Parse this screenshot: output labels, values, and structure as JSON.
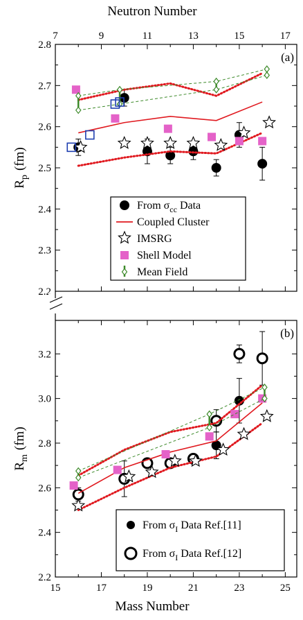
{
  "chart_data": [
    {
      "type": "scatter",
      "panel_label": "(a)",
      "xlabel_top": "Neutron Number",
      "ylabel_main": "R",
      "ylabel_sub": "p",
      "ylabel_unit": "(fm)",
      "xlim": [
        15,
        25.5
      ],
      "ylim": [
        2.2,
        2.8
      ],
      "yticks": [
        2.2,
        2.3,
        2.4,
        2.5,
        2.6,
        2.7,
        2.8
      ],
      "ytick_labels": [
        "2.2",
        "2.3",
        "2.4",
        "2.5",
        "2.6",
        "2.7",
        "2.8"
      ],
      "top_ticks": [
        7,
        9,
        11,
        13,
        15,
        17
      ],
      "top_tick_labels": [
        "7",
        "9",
        "11",
        "13",
        "15",
        "17"
      ],
      "series": [
        {
          "name": "From σcc Data",
          "legend_main": "From σ",
          "legend_sub": "cc",
          "legend_tail": " Data",
          "marker": "filled-circle",
          "x": [
            16,
            18,
            19,
            20,
            21,
            22,
            23,
            24
          ],
          "y": [
            2.55,
            2.67,
            2.54,
            2.53,
            2.54,
            2.5,
            2.58,
            2.51
          ],
          "err": [
            0.02,
            0.02,
            0.03,
            0.02,
            0.02,
            0.02,
            0.03,
            0.04
          ]
        },
        {
          "name": "Coupled Cluster",
          "marker": "line",
          "x": [
            16,
            18,
            20,
            22,
            24
          ],
          "y": [
            2.585,
            2.61,
            2.625,
            2.615,
            2.66
          ],
          "band_upper": [
            2.665,
            2.69,
            2.705,
            2.675,
            2.73
          ],
          "band_lower": [
            2.505,
            2.525,
            2.54,
            2.535,
            2.585
          ]
        },
        {
          "name": "IMSRG",
          "marker": "open-star",
          "x": [
            16.1,
            18,
            19,
            20,
            21,
            22.2,
            23.2,
            24.3
          ],
          "y": [
            2.55,
            2.56,
            2.56,
            2.56,
            2.56,
            2.555,
            2.585,
            2.61
          ]
        },
        {
          "name": "Shell Model",
          "marker": "filled-square",
          "x": [
            15.9,
            17.6,
            19.9,
            21.8,
            23,
            24
          ],
          "y": [
            2.69,
            2.62,
            2.595,
            2.575,
            2.565,
            2.565
          ]
        },
        {
          "name": "Mean Field",
          "marker": "open-diamond",
          "x": [
            16,
            17.8,
            22,
            24.2
          ],
          "y_upper": [
            2.675,
            2.69,
            2.71,
            2.74
          ],
          "y_lower": [
            2.64,
            2.655,
            2.69,
            2.725
          ]
        },
        {
          "name": "Open squares",
          "marker": "open-square",
          "in_legend": false,
          "x": [
            15.7,
            16.5,
            17.6,
            17.8
          ],
          "y": [
            2.55,
            2.58,
            2.655,
            2.66
          ]
        }
      ]
    },
    {
      "type": "scatter",
      "panel_label": "(b)",
      "xlabel": "Mass Number",
      "ylabel_main": "R",
      "ylabel_sub": "m",
      "ylabel_unit": "(fm)",
      "xlim": [
        15,
        25.5
      ],
      "ylim": [
        2.2,
        3.35
      ],
      "xticks": [
        15,
        17,
        19,
        21,
        23,
        25
      ],
      "xtick_labels": [
        "15",
        "17",
        "19",
        "21",
        "23",
        "25"
      ],
      "yticks": [
        2.2,
        2.4,
        2.6,
        2.8,
        3.0,
        3.2
      ],
      "ytick_labels": [
        "2.2",
        "2.4",
        "2.6",
        "2.8",
        "3.0",
        "3.2"
      ],
      "series": [
        {
          "name": "From σI Data Ref.[11]",
          "legend_main": "From σ",
          "legend_sub": "I",
          "legend_tail": " Data Ref.[11]",
          "marker": "filled-circle",
          "x": [
            22,
            23
          ],
          "y": [
            2.79,
            2.99
          ],
          "err": [
            0.06,
            0.1
          ]
        },
        {
          "name": "From σI Data Ref.[12]",
          "legend_main": "From σ",
          "legend_sub": "I",
          "legend_tail": " Data Ref.[12]",
          "marker": "open-circle-bold",
          "x": [
            16,
            18,
            19,
            20,
            21,
            22,
            23,
            24
          ],
          "y": [
            2.57,
            2.64,
            2.71,
            2.71,
            2.73,
            2.9,
            3.2,
            3.18
          ],
          "err": [
            0.03,
            0.08,
            0.02,
            0.02,
            0.02,
            0.05,
            0.04,
            0.12
          ]
        },
        {
          "name": "Coupled Cluster",
          "marker": "line",
          "in_legend": false,
          "x": [
            16,
            18,
            20,
            22,
            24
          ],
          "y": [
            2.575,
            2.69,
            2.76,
            2.81,
            2.98
          ],
          "band_upper": [
            2.655,
            2.77,
            2.85,
            2.89,
            3.06
          ],
          "band_lower": [
            2.5,
            2.6,
            2.69,
            2.74,
            2.89
          ]
        },
        {
          "name": "IMSRG",
          "marker": "open-star",
          "in_legend": false,
          "x": [
            16,
            18.2,
            19.2,
            20.2,
            21.1,
            22.3,
            23.2,
            24.2
          ],
          "y": [
            2.52,
            2.65,
            2.67,
            2.72,
            2.72,
            2.77,
            2.84,
            2.92
          ]
        },
        {
          "name": "Shell Model",
          "marker": "filled-square",
          "in_legend": false,
          "x": [
            15.8,
            17.7,
            19.8,
            21.7,
            22.8,
            24
          ],
          "y": [
            2.61,
            2.68,
            2.75,
            2.83,
            2.93,
            3.0
          ]
        },
        {
          "name": "Mean Field",
          "marker": "open-diamond",
          "in_legend": false,
          "x": [
            16,
            21.7,
            24.1
          ],
          "y_upper": [
            2.675,
            2.93,
            3.05
          ],
          "y_lower": [
            2.645,
            2.87,
            3.0
          ]
        }
      ]
    }
  ],
  "colors": {
    "axis": "#000000",
    "coupled_cluster": "#e0191f",
    "shell_model": "#e462c8",
    "mean_field": "#3d8a2a",
    "open_square": "#1f3fb0"
  }
}
